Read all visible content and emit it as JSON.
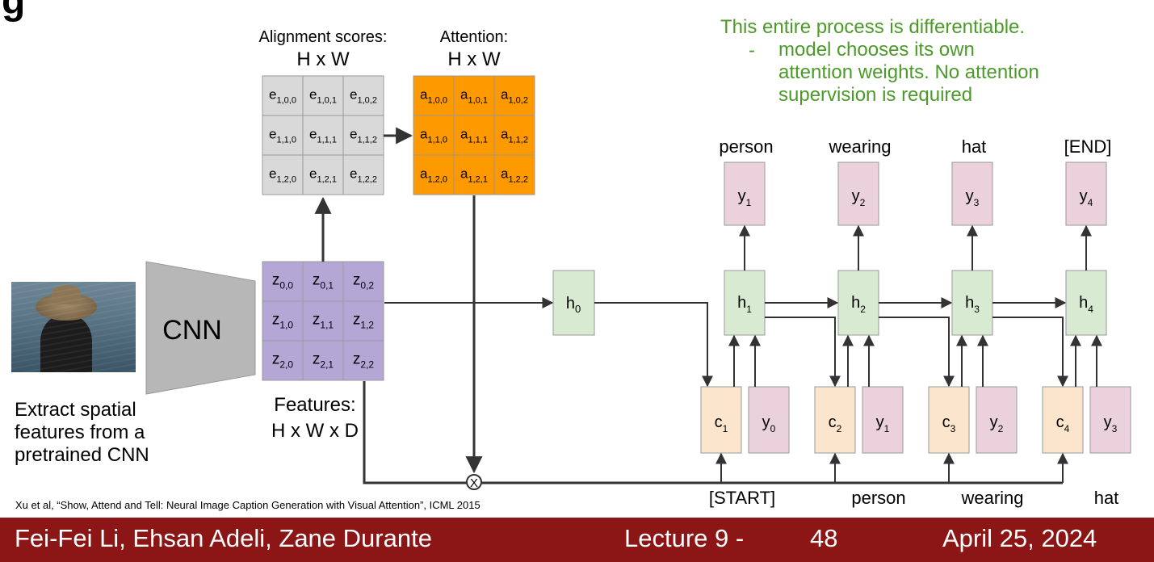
{
  "title_fragment": "g",
  "green_note": {
    "line1": "This entire process is differentiable.",
    "bullet": "-",
    "line2": "model chooses its own",
    "line3": "attention weights. No attention",
    "line4": "supervision is required"
  },
  "alignment": {
    "title": "Alignment scores:",
    "dims": "H x W",
    "cells": [
      [
        "e",
        "1,0,0"
      ],
      [
        "e",
        "1,0,1"
      ],
      [
        "e",
        "1,0,2"
      ],
      [
        "e",
        "1,1,0"
      ],
      [
        "e",
        "1,1,1"
      ],
      [
        "e",
        "1,1,2"
      ],
      [
        "e",
        "1,2,0"
      ],
      [
        "e",
        "1,2,1"
      ],
      [
        "e",
        "1,2,2"
      ]
    ]
  },
  "attention": {
    "title": "Attention:",
    "dims": "H x W",
    "cells": [
      [
        "a",
        "1,0,0"
      ],
      [
        "a",
        "1,0,1"
      ],
      [
        "a",
        "1,0,2"
      ],
      [
        "a",
        "1,1,0"
      ],
      [
        "a",
        "1,1,1"
      ],
      [
        "a",
        "1,1,2"
      ],
      [
        "a",
        "1,2,0"
      ],
      [
        "a",
        "1,2,1"
      ],
      [
        "a",
        "1,2,2"
      ]
    ]
  },
  "features": {
    "title": "Features:",
    "dims": "H x W x D",
    "cells": [
      [
        "z",
        "0,0"
      ],
      [
        "z",
        "0,1"
      ],
      [
        "z",
        "0,2"
      ],
      [
        "z",
        "1,0"
      ],
      [
        "z",
        "1,1"
      ],
      [
        "z",
        "1,2"
      ],
      [
        "z",
        "2,0"
      ],
      [
        "z",
        "2,1"
      ],
      [
        "z",
        "2,2"
      ]
    ]
  },
  "cnn_label": "CNN",
  "extract_text": [
    "Extract spatial",
    "features from a",
    "pretrained CNN"
  ],
  "h0": [
    "h",
    "0"
  ],
  "hidden": [
    [
      "h",
      "1"
    ],
    [
      "h",
      "2"
    ],
    [
      "h",
      "3"
    ],
    [
      "h",
      "4"
    ]
  ],
  "outputs": [
    [
      "y",
      "1"
    ],
    [
      "y",
      "2"
    ],
    [
      "y",
      "3"
    ],
    [
      "y",
      "4"
    ]
  ],
  "output_words": [
    "person",
    "wearing",
    "hat",
    "[END]"
  ],
  "contexts": [
    [
      "c",
      "1"
    ],
    [
      "c",
      "2"
    ],
    [
      "c",
      "3"
    ],
    [
      "c",
      "4"
    ]
  ],
  "inputs": [
    [
      "y",
      "0"
    ],
    [
      "y",
      "1"
    ],
    [
      "y",
      "2"
    ],
    [
      "y",
      "3"
    ]
  ],
  "input_words": [
    "[START]",
    "person",
    "wearing",
    "hat"
  ],
  "multiply_symbol": "X",
  "citation": "Xu et al, “Show, Attend and Tell: Neural Image Caption Generation with Visual Attention”, ICML 2015",
  "footer": {
    "authors": "Fei-Fei Li, Ehsan Adeli, Zane Durante",
    "lecture": "Lecture 9 -",
    "page": "48",
    "date": "April 25, 2024"
  },
  "colors": {
    "alignment_fill": "#d9d9d9",
    "attention_fill": "#ff9900",
    "features_fill": "#b4a7d6",
    "hidden_fill": "#d9ead3",
    "output_fill": "#ead1dc",
    "context_fill": "#fce5cd",
    "green_text": "#4c9a2a",
    "footer_bg": "#8c1515"
  }
}
